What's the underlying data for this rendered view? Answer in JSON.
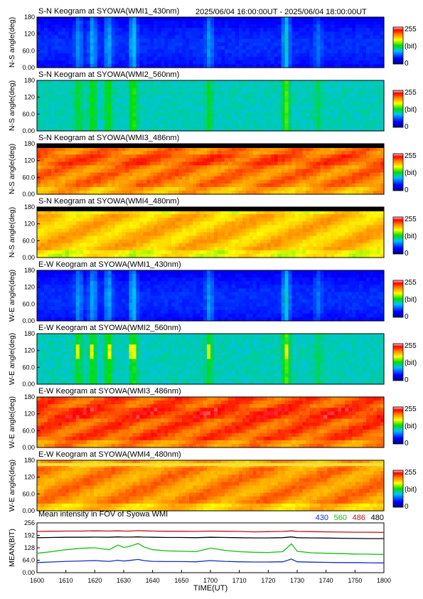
{
  "header": {
    "time_range": "2025/06/04 16:00:00UT - 2025/06/04 18:00:00UT"
  },
  "colors": {
    "c430": "#1030c0",
    "c560": "#10c010",
    "c486": "#c01010",
    "c480": "#000000"
  },
  "chart_data": [
    {
      "type": "heatmap",
      "title": "S-N Keogram at SYOWA(WMI1_430nm)",
      "ylabel": "N-S angle(deg)",
      "yticks": [
        "180",
        "120",
        "60.0",
        "0.00"
      ],
      "ylim": [
        0,
        180
      ],
      "colorbar": {
        "max_label": "255",
        "unit_label": "(bit)",
        "min_label": "0",
        "range": [
          0,
          255
        ]
      },
      "palette": "blue",
      "base": 35
    },
    {
      "type": "heatmap",
      "title": "S-N Keogram at SYOWA(WMI2_560nm)",
      "ylabel": "N-S angle(deg)",
      "yticks": [
        "180",
        "120",
        "60.0",
        "0.00"
      ],
      "ylim": [
        0,
        180
      ],
      "colorbar": {
        "max_label": "255",
        "unit_label": "(bit)",
        "min_label": "0",
        "range": [
          0,
          255
        ]
      },
      "palette": "green",
      "base": 100
    },
    {
      "type": "heatmap",
      "title": "S-N Keogram at SYOWA(WMI3_486nm)",
      "ylabel": "N-S angle(deg)",
      "yticks": [
        "180",
        "120",
        "60.0",
        "0.00"
      ],
      "ylim": [
        0,
        180
      ],
      "colorbar": {
        "max_label": "255",
        "unit_label": "(bit)",
        "min_label": "0",
        "range": [
          0,
          255
        ]
      },
      "palette": "red",
      "base": 205
    },
    {
      "type": "heatmap",
      "title": "S-N Keogram at SYOWA(WMI4_480nm)",
      "ylabel": "N-S angle(deg)",
      "yticks": [
        "180",
        "120",
        "60.0",
        "0.00"
      ],
      "ylim": [
        0,
        180
      ],
      "colorbar": {
        "max_label": "255",
        "unit_label": "(bit)",
        "min_label": "0",
        "range": [
          0,
          255
        ]
      },
      "palette": "orange",
      "base": 185
    },
    {
      "type": "heatmap",
      "title": "E-W Keogram at SYOWA(WMI1_430nm)",
      "ylabel": "W-E angle(deg)",
      "yticks": [
        "180",
        "120",
        "60.0",
        "0.00"
      ],
      "ylim": [
        0,
        180
      ],
      "colorbar": {
        "max_label": "255",
        "unit_label": "(bit)",
        "min_label": "0",
        "range": [
          0,
          255
        ]
      },
      "palette": "blue",
      "base": 35
    },
    {
      "type": "heatmap",
      "title": "E-W Keogram at SYOWA(WMI2_560nm)",
      "ylabel": "W-E angle(deg)",
      "yticks": [
        "180",
        "120",
        "60.0",
        "0.00"
      ],
      "ylim": [
        0,
        180
      ],
      "colorbar": {
        "max_label": "255",
        "unit_label": "(bit)",
        "min_label": "0",
        "range": [
          0,
          255
        ]
      },
      "palette": "green",
      "base": 100
    },
    {
      "type": "heatmap",
      "title": "E-W Keogram at SYOWA(WMI3_486nm)",
      "ylabel": "W-E angle(deg)",
      "yticks": [
        "180",
        "120",
        "60.0",
        "0.00"
      ],
      "ylim": [
        0,
        180
      ],
      "colorbar": {
        "max_label": "255",
        "unit_label": "(bit)",
        "min_label": "0",
        "range": [
          0,
          255
        ]
      },
      "palette": "red",
      "base": 215
    },
    {
      "type": "heatmap",
      "title": "E-W Keogram at SYOWA(WMI4_480nm)",
      "ylabel": "W-E angle(deg)",
      "yticks": [
        "180",
        "120",
        "60.0",
        "0.00"
      ],
      "ylim": [
        0,
        180
      ],
      "colorbar": {
        "max_label": "255",
        "unit_label": "(bit)",
        "min_label": "0",
        "range": [
          0,
          255
        ]
      },
      "palette": "orange",
      "base": 200
    },
    {
      "type": "line",
      "title": "Mean intensity in FOV of Syowa WMI",
      "ylabel": "MEAN(BIT)",
      "xlabel": "TIME(UT)",
      "yticks": [
        "256",
        "192",
        "128",
        "64.0",
        "0.00"
      ],
      "ylim": [
        0,
        256
      ],
      "x": [
        1600,
        1605,
        1610,
        1615,
        1620,
        1625,
        1628,
        1630,
        1632,
        1635,
        1637,
        1640,
        1645,
        1650,
        1655,
        1700,
        1705,
        1710,
        1715,
        1720,
        1725,
        1728,
        1730,
        1735,
        1740,
        1745,
        1750,
        1755,
        1800
      ],
      "series": [
        {
          "name": "430",
          "color": "#1030c0",
          "values": [
            52,
            55,
            58,
            60,
            62,
            58,
            64,
            60,
            63,
            68,
            62,
            58,
            57,
            57,
            56,
            62,
            58,
            56,
            55,
            55,
            56,
            70,
            56,
            54,
            53,
            52,
            52,
            51,
            50
          ]
        },
        {
          "name": "560",
          "color": "#10c010",
          "values": [
            100,
            108,
            118,
            125,
            128,
            118,
            142,
            130,
            135,
            150,
            132,
            118,
            112,
            110,
            108,
            126,
            115,
            108,
            105,
            104,
            108,
            148,
            110,
            102,
            100,
            98,
            96,
            95,
            94
          ]
        },
        {
          "name": "486",
          "color": "#c01010",
          "values": [
            212,
            213,
            214,
            214,
            215,
            214,
            215,
            214,
            214,
            216,
            215,
            214,
            213,
            213,
            212,
            214,
            213,
            212,
            210,
            211,
            212,
            215,
            212,
            211,
            210,
            209,
            208,
            208,
            207
          ]
        },
        {
          "name": "480",
          "color": "#000000",
          "values": [
            180,
            181,
            182,
            182,
            183,
            182,
            184,
            183,
            183,
            184,
            183,
            182,
            181,
            181,
            180,
            182,
            181,
            180,
            179,
            179,
            180,
            184,
            180,
            179,
            178,
            177,
            176,
            175,
            175
          ]
        }
      ],
      "xticks": [
        "1600",
        "1610",
        "1620",
        "1630",
        "1640",
        "1650",
        "1700",
        "1710",
        "1720",
        "1730",
        "1740",
        "1750",
        "1800"
      ],
      "legend": "top-right"
    }
  ]
}
